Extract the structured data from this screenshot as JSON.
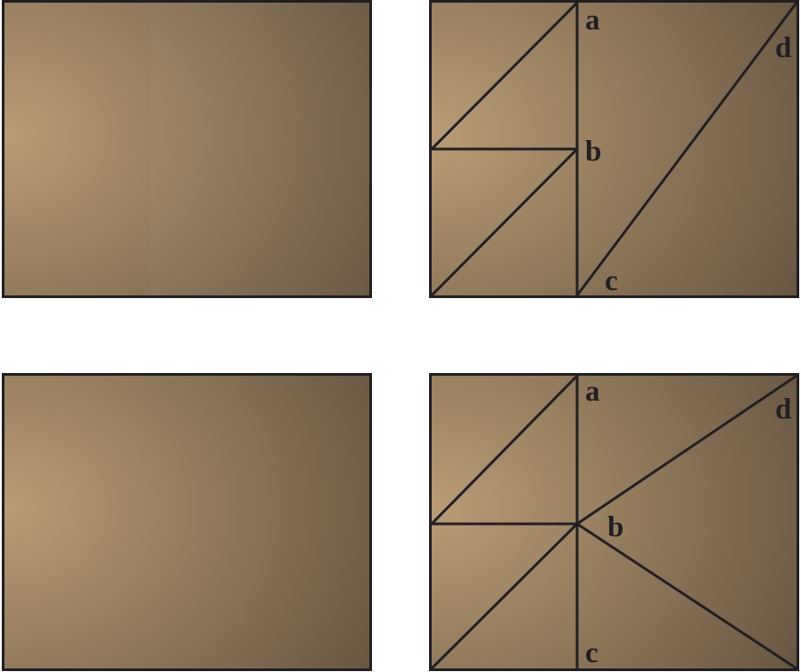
{
  "figure": {
    "panels": [
      {
        "id": "top-left",
        "lines": []
      },
      {
        "id": "top-right",
        "points": [
          "a",
          "b",
          "c",
          "d"
        ]
      },
      {
        "id": "bottom-left",
        "lines": []
      },
      {
        "id": "bottom-right",
        "points": [
          "a",
          "b",
          "c",
          "d"
        ]
      }
    ]
  },
  "labels": {
    "top_right": {
      "a": "a",
      "b": "b",
      "c": "c",
      "d": "d"
    },
    "bottom_right": {
      "a": "a",
      "b": "b",
      "c": "c",
      "d": "d"
    }
  },
  "colors": {
    "fill_light": "#b99c77",
    "fill_dark": "#63533f",
    "line": "#231f20",
    "background": "#ffffff"
  }
}
